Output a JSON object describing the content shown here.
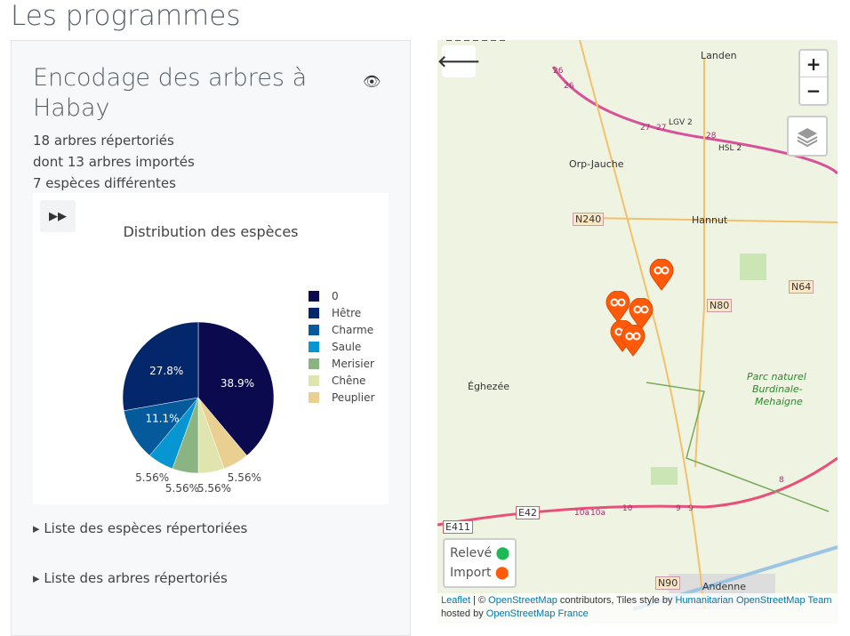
{
  "page_title": "Les programmes",
  "program": {
    "title": "Encodage des arbres à Habay",
    "stats": [
      "18 arbres répertoriés",
      "dont 13 arbres importés",
      "7 espèces différentes"
    ],
    "details": [
      "Liste des espèces répertoriées",
      "Liste des arbres répertoriés"
    ]
  },
  "chart_data": {
    "type": "pie",
    "title": "Distribution des espèces",
    "categories": [
      "0",
      "Hêtre",
      "Charme",
      "Saule",
      "Merisier",
      "Chêne",
      "Peuplier"
    ],
    "values": [
      7,
      5,
      2,
      1,
      1,
      1,
      1
    ],
    "labels": [
      "38.9%",
      "27.8%",
      "11.1%",
      "5.56%",
      "5.56%",
      "5.56%",
      "5.56%"
    ],
    "colors": [
      "#0b0a4f",
      "#04266a",
      "#045a9a",
      "#0896d2",
      "#8ab583",
      "#e0e4ae",
      "#e9d090"
    ],
    "legend_position": "right"
  },
  "map": {
    "places": [
      "Landen",
      "Orp-Jauche",
      "Hannut",
      "Éghezée",
      "Andenne",
      "Parc naturel",
      "Burdinale-",
      "Mehaigne"
    ],
    "roads": [
      "N240",
      "N64",
      "N80",
      "E42",
      "E411",
      "N90",
      "LGV 2",
      "HSL 2",
      "26",
      "26",
      "27",
      "27",
      "28",
      "10a",
      "10a",
      "10",
      "9",
      "9",
      "8"
    ],
    "zoom_in": "+",
    "zoom_out": "−",
    "legend": [
      {
        "label": "Relevé",
        "color": "#1db954"
      },
      {
        "label": "Import",
        "color": "#ff5a0a"
      }
    ],
    "attribution": {
      "leaflet": "Leaflet",
      "sep": " | © ",
      "osm": "OpenStreetMap",
      "mid": " contributors, Tiles style by ",
      "hot": "Humanitarian OpenStreetMap Team",
      "hosted": "hosted by ",
      "osmfr": "OpenStreetMap France"
    }
  }
}
